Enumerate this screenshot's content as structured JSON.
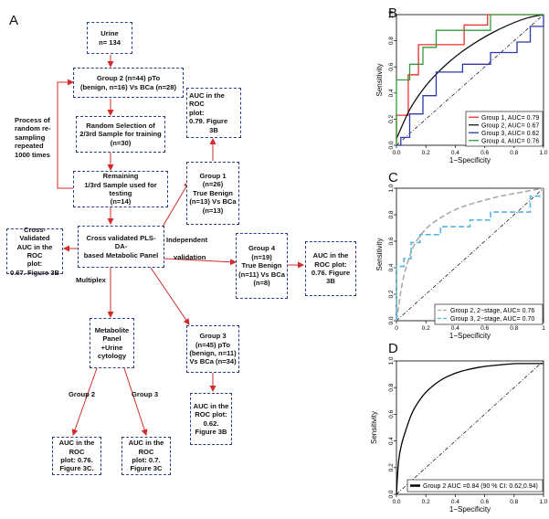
{
  "panel_labels": {
    "a": "A",
    "b": "B",
    "c": "C",
    "d": "D"
  },
  "flowchart": {
    "urine": [
      "Urine",
      "n= 134"
    ],
    "group2": [
      "Group 2 (n=44)   pTo",
      "(benign, n=16) Vs BCa (n=28)"
    ],
    "random_selection": [
      "Random Selection of",
      "2/3rd Sample for training",
      "(n=30)"
    ],
    "remaining": [
      "Remaining",
      "1/3rd Sample used for testing",
      "(n=14)"
    ],
    "process_label": [
      "Process   of",
      "random    re-",
      "sampling",
      "repeated",
      "1000 times"
    ],
    "panel": [
      "Cross validated PLS-DA-",
      "based Metabolic Panel"
    ],
    "cv_auc": [
      "Cross-Validated",
      "AUC in the ROC",
      "plot:",
      "0.67. Figure 3B"
    ],
    "multiplex_label": "Multiplex",
    "indep_label": [
      "Independent",
      "validation"
    ],
    "metab_urine": [
      "Metabolite",
      "Panel +Urine",
      "cytology"
    ],
    "branch_group2": "Group 2",
    "branch_group3": "Group 3",
    "auc_3c_g2": [
      "AUC in the ROC",
      "plot:  0.76.",
      "Figure 3C."
    ],
    "auc_3c_g3": [
      "AUC in the ROC",
      "plot:  0.7.",
      "Figure 3C"
    ],
    "group1": [
      "Group 1",
      "(n=26)",
      "True Benign",
      "(n=13) Vs BCa",
      "(n=13)"
    ],
    "auc_g1": [
      "AUC in the ROC",
      "plot:",
      "0.79. Figure",
      "3B"
    ],
    "group3": [
      "Group 3",
      "(n=45)  pTo",
      "(benign, n=11)",
      "Vs BCa (n=34)"
    ],
    "auc_g3": [
      "AUC in the",
      "ROC plot:",
      "0.62.",
      "Figure 3B"
    ],
    "group4": [
      "Group 4",
      "(n=19)",
      "True Benign",
      "(n=11) Vs BCa",
      "(n=8)"
    ],
    "auc_g4": [
      "AUC in the",
      "ROC plot:",
      "0.76. Figure",
      "3B"
    ]
  },
  "chart_data": [
    {
      "panel": "B",
      "type": "line",
      "xlabel": "1−Specificity",
      "ylabel": "Sensitivity",
      "xlim": [
        0,
        1
      ],
      "ylim": [
        0,
        1
      ],
      "x_ticks": [
        "0.0",
        "0.2",
        "0.4",
        "0.6",
        "0.8",
        "1.0"
      ],
      "y_ticks": [
        "0.0",
        "0.2",
        "0.4",
        "0.6",
        "0.8",
        "1.0"
      ],
      "legend_position": "bottom-right",
      "series": [
        {
          "name": "Group 1, AUC= 0.79",
          "color": "#e8302a",
          "step": true,
          "x": [
            0,
            0,
            0.08,
            0.08,
            0.15,
            0.15,
            0.46,
            0.46,
            0.62,
            0.62,
            1.0
          ],
          "y": [
            0,
            0.23,
            0.23,
            0.54,
            0.54,
            0.77,
            0.77,
            0.92,
            0.92,
            1.0,
            1.0
          ]
        },
        {
          "name": "Group 2, AUC= 0.67",
          "color": "#111111",
          "step": false,
          "x": [
            0,
            0.05,
            0.1,
            0.2,
            0.3,
            0.4,
            0.5,
            0.6,
            0.7,
            0.8,
            0.9,
            1.0
          ],
          "y": [
            0.05,
            0.18,
            0.3,
            0.46,
            0.58,
            0.68,
            0.76,
            0.83,
            0.89,
            0.94,
            0.98,
            1.0
          ]
        },
        {
          "name": "Group 3, AUC= 0.62",
          "color": "#2b3aa8",
          "step": true,
          "x": [
            0,
            0.03,
            0.03,
            0.09,
            0.09,
            0.18,
            0.18,
            0.27,
            0.27,
            0.45,
            0.45,
            0.64,
            0.64,
            0.82,
            0.82,
            0.91,
            0.91,
            1.0,
            1.0
          ],
          "y": [
            0,
            0,
            0.06,
            0.06,
            0.24,
            0.24,
            0.38,
            0.38,
            0.56,
            0.56,
            0.62,
            0.62,
            0.71,
            0.71,
            0.79,
            0.79,
            0.91,
            0.91,
            1.0
          ]
        },
        {
          "name": "Group 4, AUC= 0.76",
          "color": "#2e9e3a",
          "step": true,
          "x": [
            0,
            0,
            0.09,
            0.09,
            0.18,
            0.18,
            0.27,
            0.27,
            0.45,
            0.45,
            0.64,
            0.64,
            0.82,
            0.82,
            1.0
          ],
          "y": [
            0,
            0.5,
            0.5,
            0.62,
            0.62,
            0.75,
            0.75,
            0.88,
            0.88,
            0.88,
            0.88,
            1.0,
            1.0,
            1.0,
            1.0
          ]
        }
      ]
    },
    {
      "panel": "C",
      "type": "line",
      "xlabel": "1−Specificity",
      "ylabel": "Sensitivity",
      "xlim": [
        0,
        1
      ],
      "ylim": [
        0,
        1
      ],
      "x_ticks": [
        "0",
        "0.2",
        "0.4",
        "0.6",
        "0.8",
        "1"
      ],
      "y_ticks": [
        "0.0",
        "0.2",
        "0.4",
        "0.6",
        "0.8",
        "1.0"
      ],
      "legend_position": "bottom-right",
      "series": [
        {
          "name": "Group 2, 2−stage, AUC= 0.76",
          "color": "#aaaaaa",
          "dashed": true,
          "step": false,
          "x": [
            0,
            0.04,
            0.08,
            0.12,
            0.2,
            0.3,
            0.4,
            0.5,
            0.6,
            0.7,
            0.8,
            0.9,
            1.0
          ],
          "y": [
            0,
            0.3,
            0.46,
            0.58,
            0.7,
            0.78,
            0.84,
            0.88,
            0.91,
            0.94,
            0.96,
            0.98,
            1.0
          ]
        },
        {
          "name": "Group 3, 2−stage, AUC= 0.70",
          "color": "#5ab4e0",
          "dashed": true,
          "step": true,
          "x": [
            0,
            0,
            0.05,
            0.05,
            0.1,
            0.1,
            0.16,
            0.16,
            0.3,
            0.3,
            0.5,
            0.5,
            0.64,
            0.64,
            0.91,
            0.91,
            1.0
          ],
          "y": [
            0,
            0.41,
            0.41,
            0.47,
            0.47,
            0.59,
            0.59,
            0.65,
            0.65,
            0.71,
            0.71,
            0.76,
            0.76,
            0.82,
            0.82,
            0.94,
            0.94
          ]
        }
      ]
    },
    {
      "panel": "D",
      "type": "line",
      "xlabel": "1−Specificity",
      "ylabel": "Sensitivity",
      "xlim": [
        0,
        1
      ],
      "ylim": [
        0,
        1
      ],
      "x_ticks": [
        "0.0",
        "0.2",
        "0.4",
        "0.6",
        "0.8",
        "1.0"
      ],
      "y_ticks": [
        "0.0",
        "0.2",
        "0.4",
        "0.6",
        "0.8",
        "1.0"
      ],
      "legend_position": "bottom-right",
      "series": [
        {
          "name": "Group 2 AUC =0.84 (90 % CI: 0.62,0.94)",
          "color": "#000000",
          "step": false,
          "x": [
            0,
            0.01,
            0.02,
            0.04,
            0.06,
            0.1,
            0.14,
            0.2,
            0.3,
            0.4,
            0.5,
            0.6,
            0.7,
            0.8,
            0.9,
            1.0
          ],
          "y": [
            0,
            0.2,
            0.3,
            0.4,
            0.47,
            0.6,
            0.68,
            0.77,
            0.86,
            0.91,
            0.94,
            0.96,
            0.97,
            0.98,
            0.98,
            0.98
          ]
        }
      ]
    }
  ]
}
